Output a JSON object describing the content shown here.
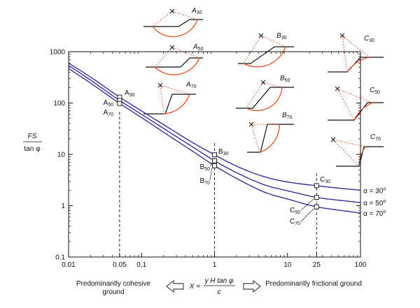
{
  "chart_data": {
    "type": "line",
    "xscale": "log",
    "yscale": "log",
    "xlim": [
      0.01,
      100
    ],
    "ylim": [
      0.1,
      1000
    ],
    "xticks": [
      0.01,
      0.05,
      0.1,
      1,
      10,
      25,
      100
    ],
    "xtick_labels": [
      "0.01",
      "0.05",
      "0.1",
      "1",
      "10",
      "25",
      "100"
    ],
    "yticks": [
      0.1,
      1,
      10,
      100,
      1000
    ],
    "ytick_labels": [
      "0.1",
      "1",
      "10",
      "100",
      "1000"
    ],
    "ylabel_num": "FS",
    "ylabel_den": "tan φ",
    "xlabel_formula": "X = γ H tan φ / c",
    "xlabel_left": "Predominantly cohesive ground",
    "xlabel_right": "Predominantly frictional ground",
    "vertical_lines": [
      0.05,
      1,
      25
    ],
    "series": [
      {
        "name": "α = 30°",
        "x": [
          0.01,
          0.02,
          0.05,
          0.1,
          0.2,
          0.5,
          1,
          2,
          5,
          10,
          25,
          50,
          100
        ],
        "y": [
          600,
          320,
          130,
          70,
          38,
          17,
          9.8,
          5.9,
          3.6,
          2.9,
          2.45,
          2.2,
          2.0
        ]
      },
      {
        "name": "α = 50°",
        "x": [
          0.01,
          0.02,
          0.05,
          0.1,
          0.2,
          0.5,
          1,
          2,
          5,
          10,
          25,
          50,
          100
        ],
        "y": [
          540,
          280,
          112,
          60,
          32,
          14,
          7.5,
          4.4,
          2.5,
          1.95,
          1.45,
          1.28,
          1.15
        ]
      },
      {
        "name": "α = 70°",
        "x": [
          0.01,
          0.02,
          0.05,
          0.1,
          0.2,
          0.5,
          1,
          2,
          5,
          10,
          25,
          50,
          100
        ],
        "y": [
          470,
          245,
          98,
          52,
          27,
          11.5,
          6.0,
          3.4,
          1.8,
          1.35,
          0.95,
          0.82,
          0.72
        ]
      }
    ],
    "markers": [
      {
        "x": 0.05,
        "y": 130,
        "label": "A30"
      },
      {
        "x": 0.05,
        "y": 112,
        "label": "A50"
      },
      {
        "x": 0.05,
        "y": 98,
        "label": "A70"
      },
      {
        "x": 1,
        "y": 9.8,
        "label": "B30"
      },
      {
        "x": 1,
        "y": 7.5,
        "label": "B50"
      },
      {
        "x": 1,
        "y": 6.0,
        "label": "B70"
      },
      {
        "x": 25,
        "y": 2.45,
        "label": "C30"
      },
      {
        "x": 25,
        "y": 1.45,
        "label": "C50"
      },
      {
        "x": 25,
        "y": 0.95,
        "label": "C70"
      }
    ],
    "sketch_labels": [
      "A30",
      "A50",
      "A70",
      "B30",
      "B50",
      "B70",
      "C30",
      "C50",
      "C70"
    ]
  },
  "colors": {
    "curve": "#3a2f9a",
    "slip_circle": "#e0522a",
    "center_line": "#e0522a",
    "axis": "#111111"
  }
}
